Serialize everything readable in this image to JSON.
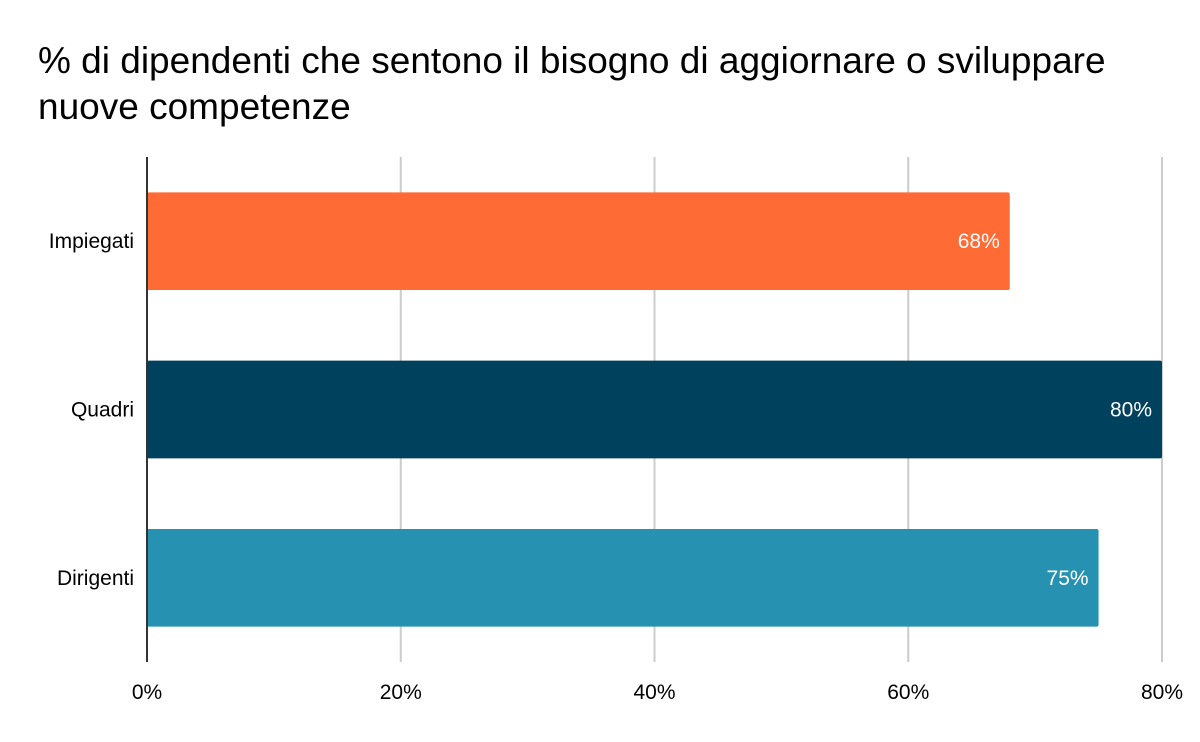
{
  "chart_data": {
    "type": "bar",
    "orientation": "horizontal",
    "title": "% di dipendenti che sentono il bisogno di aggiornare o sviluppare nuove competenze",
    "categories": [
      "Impiegati",
      "Quadri",
      "Dirigenti"
    ],
    "values": [
      68,
      80,
      75
    ],
    "data_labels": [
      "68%",
      "80%",
      "75%"
    ],
    "colors": [
      "#ff6b35",
      "#00425e",
      "#2791b2"
    ],
    "xlim": [
      0,
      80
    ],
    "xticks": [
      0,
      20,
      40,
      60,
      80
    ],
    "xtick_labels": [
      "0%",
      "20%",
      "40%",
      "60%",
      "80%"
    ],
    "xlabel": "",
    "ylabel": "",
    "grid": true,
    "legend": "none"
  }
}
